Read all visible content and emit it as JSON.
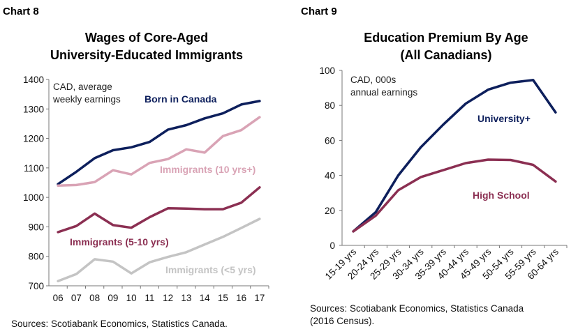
{
  "charts": [
    {
      "panel_label": "Chart 8",
      "title_line1": "Wages of Core-Aged",
      "title_line2": "University-Educated Immigrants",
      "source": "Sources: Scotiabank Economics, Statistics Canada.",
      "note_lines": [
        "CAD, average",
        "weekly earnings"
      ],
      "colors": {
        "axis": "#777777"
      }
    },
    {
      "panel_label": "Chart 9",
      "title_line1": "Education Premium By Age",
      "title_line2": "(All Canadians)",
      "source_lines": [
        "Sources: Scotiabank Economics, Statistics Canada",
        "(2016 Census)."
      ],
      "note_lines": [
        "CAD, 000s",
        "annual earnings"
      ],
      "colors": {
        "axis": "#777777"
      }
    }
  ],
  "chart_data": [
    {
      "type": "line",
      "title": "Wages of Core-Aged University-Educated Immigrants",
      "x": [
        "06",
        "07",
        "08",
        "09",
        "10",
        "11",
        "12",
        "13",
        "14",
        "15",
        "16",
        "17"
      ],
      "ylim": [
        700,
        1400
      ],
      "yticks": [
        700,
        800,
        900,
        1000,
        1100,
        1200,
        1300,
        1400
      ],
      "series": [
        {
          "name": "Born in Canada",
          "color": "#0d1f5c",
          "values": [
            1045,
            1087,
            1133,
            1160,
            1170,
            1188,
            1230,
            1245,
            1268,
            1285,
            1315,
            1327
          ]
        },
        {
          "name": "Immigrants (10 yrs+)",
          "color": "#d9a3b5",
          "values": [
            1040,
            1042,
            1052,
            1092,
            1078,
            1117,
            1130,
            1163,
            1152,
            1208,
            1228,
            1272
          ]
        },
        {
          "name": "Immigrants (5-10 yrs)",
          "color": "#8b2f52",
          "values": [
            882,
            903,
            945,
            906,
            897,
            933,
            963,
            962,
            960,
            960,
            982,
            1034
          ]
        },
        {
          "name": "Immigrants (<5 yrs)",
          "color": "#c4c4c4",
          "values": [
            716,
            740,
            790,
            782,
            742,
            780,
            798,
            814,
            840,
            866,
            896,
            927
          ]
        }
      ]
    },
    {
      "type": "line",
      "title": "Education Premium By Age (All Canadians)",
      "x": [
        "15-19 yrs",
        "20-24 yrs",
        "25-29 yrs",
        "30-34 yrs",
        "35-39 yrs",
        "40-44 yrs",
        "45-49 yrs",
        "50-54 yrs",
        "55-59 yrs",
        "60-64 yrs"
      ],
      "ylim": [
        0,
        100
      ],
      "yticks": [
        0,
        20,
        40,
        60,
        80,
        100
      ],
      "series": [
        {
          "name": "University+",
          "color": "#0d1f5c",
          "values": [
            8,
            19,
            40,
            56,
            69,
            81,
            89,
            93,
            94.5,
            76
          ]
        },
        {
          "name": "High School",
          "color": "#8b2f52",
          "values": [
            8,
            17,
            31.5,
            39,
            43,
            47,
            49,
            48.8,
            46,
            36.5
          ]
        }
      ]
    }
  ]
}
